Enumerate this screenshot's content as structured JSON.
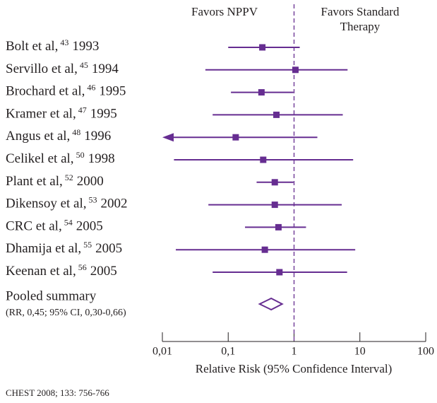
{
  "chart_data": {
    "type": "forest",
    "header_left": "Favors NPPV",
    "header_right": [
      "Favors Standard",
      "Therapy"
    ],
    "xlabel": "Relative Risk (95% Confidence Interval)",
    "xlim": [
      0.01,
      100
    ],
    "xticks": [
      {
        "value": 0.01,
        "label": "0,01"
      },
      {
        "value": 0.1,
        "label": "0,1"
      },
      1,
      10,
      100
    ],
    "log_x": true,
    "reference_line": 1,
    "color": "#662d91",
    "studies": [
      {
        "name": "Bolt et al,",
        "ref": "43",
        "year": "1993",
        "estimate": 0.33,
        "lower": 0.1,
        "upper": 1.22
      },
      {
        "name": "Servillo et al,",
        "ref": "45",
        "year": "1994",
        "estimate": 1.05,
        "lower": 0.045,
        "upper": 6.5
      },
      {
        "name": "Brochard et al,",
        "ref": "46",
        "year": "1995",
        "estimate": 0.32,
        "lower": 0.11,
        "upper": 0.98
      },
      {
        "name": "Kramer et al,",
        "ref": "47",
        "year": "1995",
        "estimate": 0.54,
        "lower": 0.058,
        "upper": 5.5
      },
      {
        "name": "Angus et al,",
        "ref": "48",
        "year": "1996",
        "estimate": 0.13,
        "lower": 0.005,
        "upper": 2.26
      },
      {
        "name": "Celikel et al,",
        "ref": "50",
        "year": "1998",
        "estimate": 0.34,
        "lower": 0.015,
        "upper": 7.9
      },
      {
        "name": "Plant et al,",
        "ref": "52",
        "year": "2000",
        "estimate": 0.51,
        "lower": 0.27,
        "upper": 0.98
      },
      {
        "name": "Dikensoy et al,",
        "ref": "53",
        "year": "2002",
        "estimate": 0.51,
        "lower": 0.05,
        "upper": 5.3
      },
      {
        "name": "CRC et al,",
        "ref": "54",
        "year": "2005",
        "estimate": 0.58,
        "lower": 0.18,
        "upper": 1.52
      },
      {
        "name": "Dhamija et al,",
        "ref": "55",
        "year": "2005",
        "estimate": 0.36,
        "lower": 0.016,
        "upper": 8.5
      },
      {
        "name": "Keenan et al,",
        "ref": "56",
        "year": "2005",
        "estimate": 0.6,
        "lower": 0.058,
        "upper": 6.4
      }
    ],
    "pooled": {
      "label": "Pooled summary",
      "summary": "(RR, 0,45; 95% CI, 0,30-0,66)",
      "estimate": 0.45,
      "lower": 0.3,
      "upper": 0.66
    }
  },
  "source": "CHEST 2008; 133: 756-766"
}
